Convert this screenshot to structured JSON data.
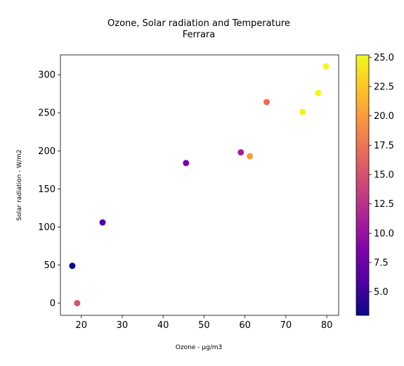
{
  "chart_data": {
    "type": "scatter",
    "title": [
      "Ozone, Solar radiation and Temperature",
      "Ferrara"
    ],
    "xlabel": "Ozone - µg/m3",
    "ylabel": "Solar radiation - W/m2",
    "xlim": [
      14.9,
      82.9
    ],
    "ylim": [
      -16,
      326
    ],
    "x_ticks": [
      20,
      30,
      40,
      50,
      60,
      70,
      80
    ],
    "y_ticks": [
      0,
      50,
      100,
      150,
      200,
      250,
      300
    ],
    "colorbar": {
      "colormap": "plasma",
      "range": [
        3.0,
        25.2
      ],
      "ticks": [
        5.0,
        7.5,
        10.0,
        12.5,
        15.0,
        17.5,
        20.0,
        22.5,
        25.0
      ],
      "tick_labels": [
        "5.0",
        "7.5",
        "10.0",
        "12.5",
        "15.0",
        "17.5",
        "20.0",
        "22.5",
        "25.0"
      ]
    },
    "grid": false,
    "points": [
      {
        "x": 17.8,
        "y": 49,
        "c": 3.0
      },
      {
        "x": 19.0,
        "y": 0,
        "c": 15.0
      },
      {
        "x": 25.2,
        "y": 106,
        "c": 6.0
      },
      {
        "x": 45.6,
        "y": 184,
        "c": 8.5
      },
      {
        "x": 59.0,
        "y": 198,
        "c": 11.0
      },
      {
        "x": 61.2,
        "y": 193,
        "c": 20.0
      },
      {
        "x": 65.3,
        "y": 264,
        "c": 17.0
      },
      {
        "x": 74.1,
        "y": 251,
        "c": 24.6
      },
      {
        "x": 77.9,
        "y": 276,
        "c": 25.0
      },
      {
        "x": 79.8,
        "y": 311,
        "c": 25.2
      }
    ]
  }
}
